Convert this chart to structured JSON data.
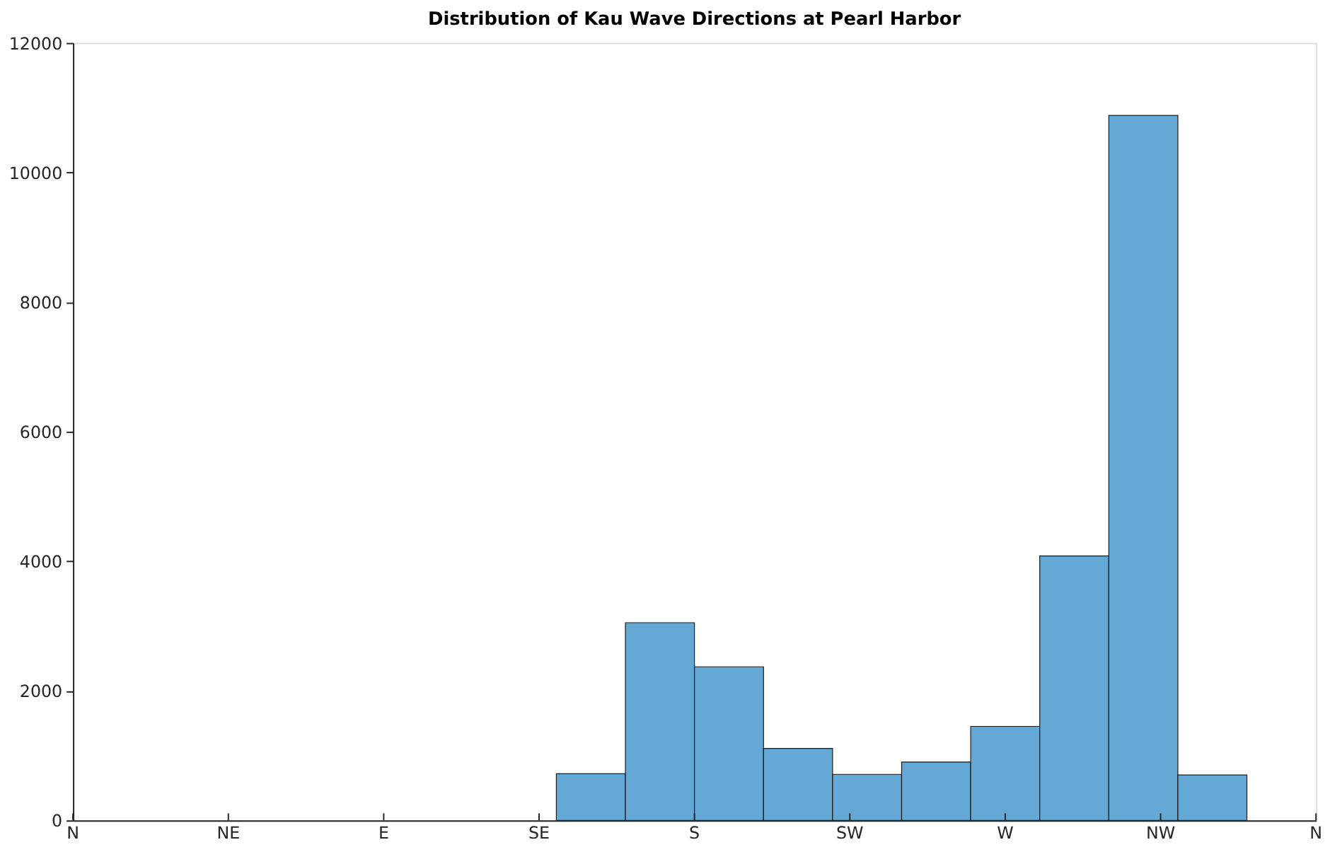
{
  "chart_data": {
    "type": "bar",
    "title": "Distribution of Kau Wave Directions at Pearl Harbor",
    "categories": [
      null,
      null,
      null,
      null,
      null,
      null,
      null,
      null,
      null,
      null,
      null,
      null,
      null,
      null,
      null,
      null,
      null,
      null
    ],
    "values": [
      null,
      null,
      null,
      null,
      null,
      null,
      null,
      720,
      3050,
      2370,
      1110,
      710,
      900,
      1450,
      4080,
      10880,
      700,
      null
    ],
    "color": "#64a8d6",
    "annotations": [
      "N",
      "NE",
      "E",
      "SE",
      "S",
      "SW",
      "W",
      "NW",
      "N"
    ],
    "ylim": [
      0,
      12000
    ],
    "yticks": [
      0,
      2000,
      4000,
      6000,
      8000,
      10000,
      12000
    ],
    "grid": false
  }
}
